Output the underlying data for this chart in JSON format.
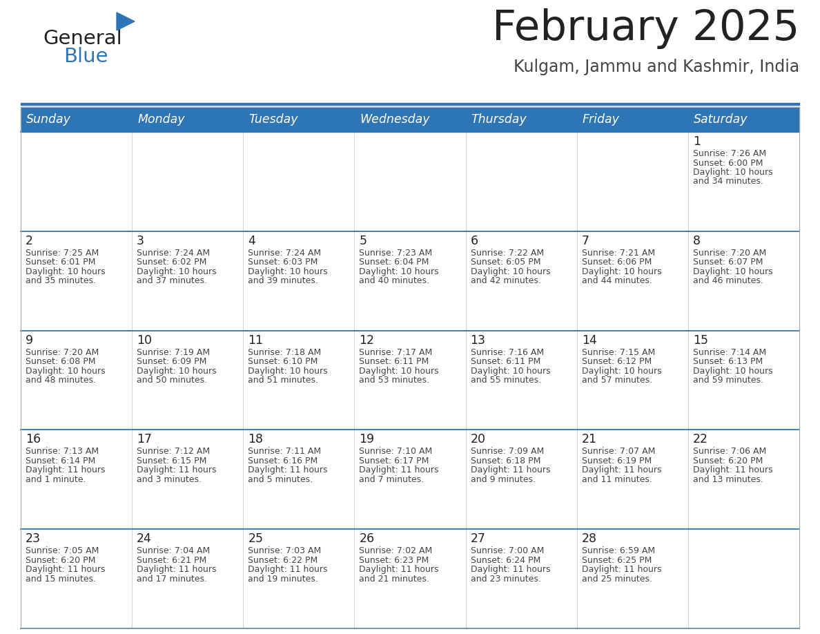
{
  "title": "February 2025",
  "subtitle": "Kulgam, Jammu and Kashmir, India",
  "header_bg": "#2E75B6",
  "header_text": "#FFFFFF",
  "cell_bg_gray": "#F2F2F2",
  "cell_bg_white": "#FFFFFF",
  "day_headers": [
    "Sunday",
    "Monday",
    "Tuesday",
    "Wednesday",
    "Thursday",
    "Friday",
    "Saturday"
  ],
  "days": [
    {
      "day": 1,
      "col": 6,
      "row": 0,
      "sunrise": "7:26 AM",
      "sunset": "6:00 PM",
      "daylight": "10 hours and 34 minutes."
    },
    {
      "day": 2,
      "col": 0,
      "row": 1,
      "sunrise": "7:25 AM",
      "sunset": "6:01 PM",
      "daylight": "10 hours and 35 minutes."
    },
    {
      "day": 3,
      "col": 1,
      "row": 1,
      "sunrise": "7:24 AM",
      "sunset": "6:02 PM",
      "daylight": "10 hours and 37 minutes."
    },
    {
      "day": 4,
      "col": 2,
      "row": 1,
      "sunrise": "7:24 AM",
      "sunset": "6:03 PM",
      "daylight": "10 hours and 39 minutes."
    },
    {
      "day": 5,
      "col": 3,
      "row": 1,
      "sunrise": "7:23 AM",
      "sunset": "6:04 PM",
      "daylight": "10 hours and 40 minutes."
    },
    {
      "day": 6,
      "col": 4,
      "row": 1,
      "sunrise": "7:22 AM",
      "sunset": "6:05 PM",
      "daylight": "10 hours and 42 minutes."
    },
    {
      "day": 7,
      "col": 5,
      "row": 1,
      "sunrise": "7:21 AM",
      "sunset": "6:06 PM",
      "daylight": "10 hours and 44 minutes."
    },
    {
      "day": 8,
      "col": 6,
      "row": 1,
      "sunrise": "7:20 AM",
      "sunset": "6:07 PM",
      "daylight": "10 hours and 46 minutes."
    },
    {
      "day": 9,
      "col": 0,
      "row": 2,
      "sunrise": "7:20 AM",
      "sunset": "6:08 PM",
      "daylight": "10 hours and 48 minutes."
    },
    {
      "day": 10,
      "col": 1,
      "row": 2,
      "sunrise": "7:19 AM",
      "sunset": "6:09 PM",
      "daylight": "10 hours and 50 minutes."
    },
    {
      "day": 11,
      "col": 2,
      "row": 2,
      "sunrise": "7:18 AM",
      "sunset": "6:10 PM",
      "daylight": "10 hours and 51 minutes."
    },
    {
      "day": 12,
      "col": 3,
      "row": 2,
      "sunrise": "7:17 AM",
      "sunset": "6:11 PM",
      "daylight": "10 hours and 53 minutes."
    },
    {
      "day": 13,
      "col": 4,
      "row": 2,
      "sunrise": "7:16 AM",
      "sunset": "6:11 PM",
      "daylight": "10 hours and 55 minutes."
    },
    {
      "day": 14,
      "col": 5,
      "row": 2,
      "sunrise": "7:15 AM",
      "sunset": "6:12 PM",
      "daylight": "10 hours and 57 minutes."
    },
    {
      "day": 15,
      "col": 6,
      "row": 2,
      "sunrise": "7:14 AM",
      "sunset": "6:13 PM",
      "daylight": "10 hours and 59 minutes."
    },
    {
      "day": 16,
      "col": 0,
      "row": 3,
      "sunrise": "7:13 AM",
      "sunset": "6:14 PM",
      "daylight": "11 hours and 1 minute."
    },
    {
      "day": 17,
      "col": 1,
      "row": 3,
      "sunrise": "7:12 AM",
      "sunset": "6:15 PM",
      "daylight": "11 hours and 3 minutes."
    },
    {
      "day": 18,
      "col": 2,
      "row": 3,
      "sunrise": "7:11 AM",
      "sunset": "6:16 PM",
      "daylight": "11 hours and 5 minutes."
    },
    {
      "day": 19,
      "col": 3,
      "row": 3,
      "sunrise": "7:10 AM",
      "sunset": "6:17 PM",
      "daylight": "11 hours and 7 minutes."
    },
    {
      "day": 20,
      "col": 4,
      "row": 3,
      "sunrise": "7:09 AM",
      "sunset": "6:18 PM",
      "daylight": "11 hours and 9 minutes."
    },
    {
      "day": 21,
      "col": 5,
      "row": 3,
      "sunrise": "7:07 AM",
      "sunset": "6:19 PM",
      "daylight": "11 hours and 11 minutes."
    },
    {
      "day": 22,
      "col": 6,
      "row": 3,
      "sunrise": "7:06 AM",
      "sunset": "6:20 PM",
      "daylight": "11 hours and 13 minutes."
    },
    {
      "day": 23,
      "col": 0,
      "row": 4,
      "sunrise": "7:05 AM",
      "sunset": "6:20 PM",
      "daylight": "11 hours and 15 minutes."
    },
    {
      "day": 24,
      "col": 1,
      "row": 4,
      "sunrise": "7:04 AM",
      "sunset": "6:21 PM",
      "daylight": "11 hours and 17 minutes."
    },
    {
      "day": 25,
      "col": 2,
      "row": 4,
      "sunrise": "7:03 AM",
      "sunset": "6:22 PM",
      "daylight": "11 hours and 19 minutes."
    },
    {
      "day": 26,
      "col": 3,
      "row": 4,
      "sunrise": "7:02 AM",
      "sunset": "6:23 PM",
      "daylight": "11 hours and 21 minutes."
    },
    {
      "day": 27,
      "col": 4,
      "row": 4,
      "sunrise": "7:00 AM",
      "sunset": "6:24 PM",
      "daylight": "11 hours and 23 minutes."
    },
    {
      "day": 28,
      "col": 5,
      "row": 4,
      "sunrise": "6:59 AM",
      "sunset": "6:25 PM",
      "daylight": "11 hours and 25 minutes."
    }
  ],
  "num_rows": 5,
  "num_cols": 7,
  "logo_general_color": "#222222",
  "logo_blue_color": "#2E75B6",
  "title_color": "#222222",
  "subtitle_color": "#444444",
  "divider_color": "#2E75B6",
  "separator_color": "#2E75B6",
  "day_number_color": "#222222",
  "cell_text_color": "#444444"
}
